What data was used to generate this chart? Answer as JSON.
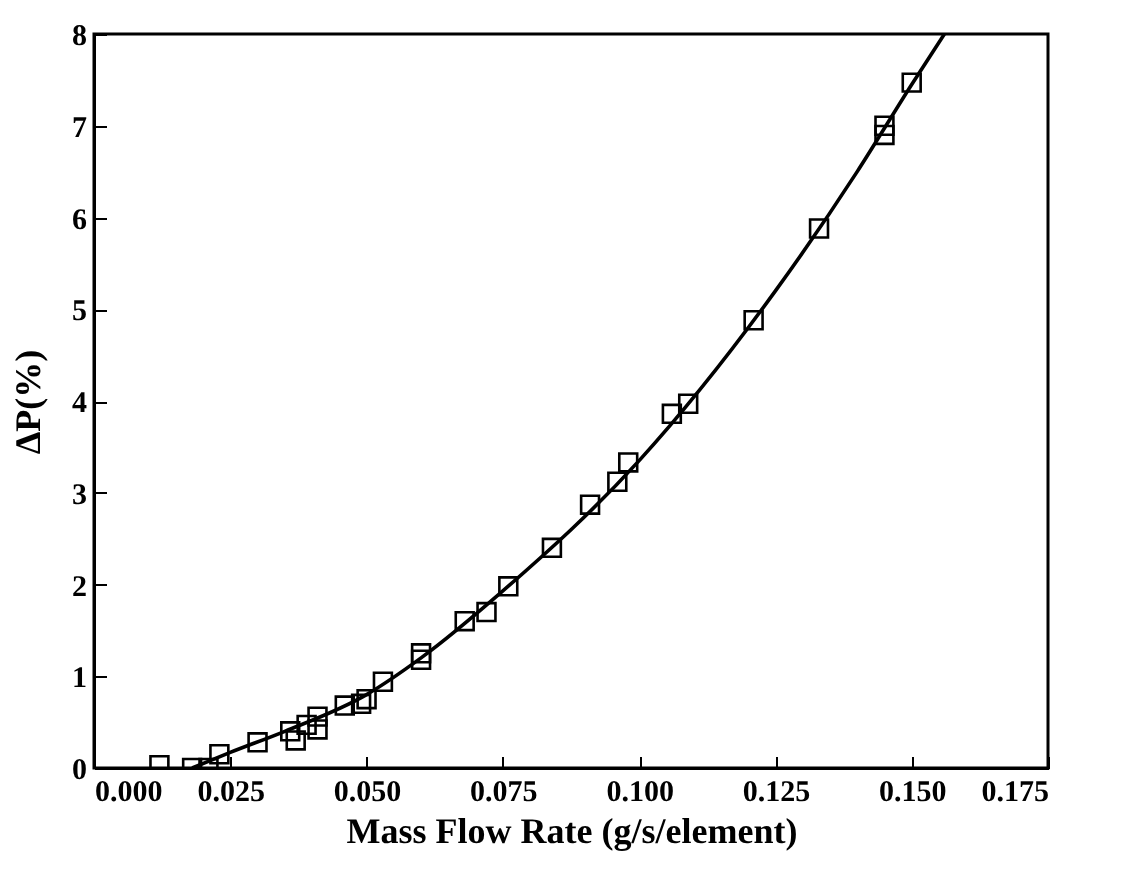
{
  "chart_data": {
    "type": "scatter",
    "xlabel": "Mass Flow Rate (g/s/element)",
    "ylabel": "ΔP(%)",
    "xlim": [
      0,
      0.175
    ],
    "ylim": [
      0,
      8
    ],
    "xticks": [
      {
        "value": 0,
        "label": "0.000"
      },
      {
        "value": 0.025,
        "label": "0.025"
      },
      {
        "value": 0.05,
        "label": "0.050"
      },
      {
        "value": 0.075,
        "label": "0.075"
      },
      {
        "value": 0.1,
        "label": "0.100"
      },
      {
        "value": 0.125,
        "label": "0.125"
      },
      {
        "value": 0.15,
        "label": "0.150"
      },
      {
        "value": 0.175,
        "label": "0.175"
      }
    ],
    "yticks": [
      0,
      1,
      2,
      3,
      4,
      5,
      6,
      7,
      8
    ],
    "grid": false,
    "marker": "square",
    "series": [
      {
        "color": "#000000",
        "x": [
          0.012,
          0.018,
          0.021,
          0.023,
          0.03,
          0.036,
          0.037,
          0.039,
          0.041,
          0.041,
          0.046,
          0.049,
          0.05,
          0.053,
          0.06,
          0.06,
          0.068,
          0.072,
          0.076,
          0.084,
          0.091,
          0.096,
          0.098,
          0.106,
          0.109,
          0.121,
          0.133,
          0.145,
          0.145,
          0.15
        ],
        "values": [
          0.03,
          0.0,
          0.0,
          0.15,
          0.28,
          0.4,
          0.3,
          0.47,
          0.42,
          0.56,
          0.68,
          0.7,
          0.75,
          0.94,
          1.18,
          1.25,
          1.6,
          1.7,
          1.98,
          2.4,
          2.87,
          3.12,
          3.33,
          3.86,
          3.97,
          4.88,
          5.88,
          6.9,
          7.0,
          7.47
        ]
      },
      {
        "type": "line",
        "color": "#000000",
        "marker": "none",
        "line_style": "solid",
        "x": [
          0.018,
          0.025,
          0.035,
          0.05,
          0.06,
          0.075,
          0.1,
          0.125,
          0.14,
          0.15,
          0.156
        ],
        "values": [
          0.0,
          0.17,
          0.4,
          0.8,
          1.2,
          1.93,
          3.35,
          5.2,
          6.5,
          7.45,
          8.0
        ]
      }
    ]
  }
}
